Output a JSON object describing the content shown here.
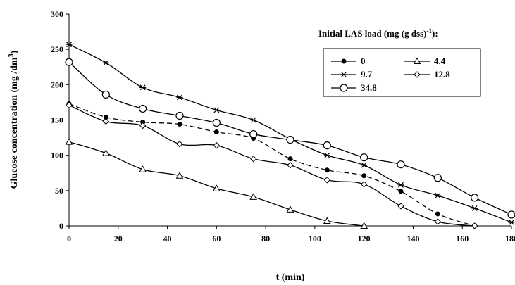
{
  "chart_data": {
    "type": "line",
    "xlabel": "t (min)",
    "ylabel": "Glucose concentration  (mg /dm",
    "ylabel_sup": "3",
    "ylabel_end": ")",
    "xlim": [
      0,
      180
    ],
    "ylim": [
      0,
      300
    ],
    "xticks": [
      0,
      20,
      40,
      60,
      80,
      100,
      120,
      140,
      160,
      180
    ],
    "yticks": [
      0,
      50,
      100,
      150,
      200,
      250,
      300
    ],
    "grid": false,
    "legend": {
      "title": "Initial LAS load (mg (g dss)",
      "title_sup": "-1",
      "title_end": "):",
      "placement": "top-right"
    },
    "series": [
      {
        "name": "0",
        "marker": "filled-circle",
        "dashed": true,
        "x": [
          0,
          15,
          30,
          45,
          60,
          75,
          90,
          105,
          120,
          135,
          150,
          165
        ],
        "y": [
          173,
          154,
          147,
          144,
          133,
          124,
          95,
          79,
          71,
          49,
          17,
          0
        ]
      },
      {
        "name": "4.4",
        "marker": "triangle",
        "dashed": false,
        "x": [
          0,
          15,
          30,
          45,
          60,
          75,
          90,
          105,
          120
        ],
        "y": [
          119,
          103,
          80,
          71,
          53,
          41,
          23,
          7,
          0
        ]
      },
      {
        "name": "9.7",
        "marker": "star",
        "dashed": false,
        "x": [
          0,
          15,
          30,
          45,
          60,
          75,
          90,
          105,
          120,
          135,
          150,
          165,
          180
        ],
        "y": [
          257,
          231,
          196,
          182,
          164,
          150,
          123,
          100,
          86,
          58,
          43,
          25,
          5
        ]
      },
      {
        "name": "12.8",
        "marker": "diamond",
        "dashed": false,
        "x": [
          0,
          15,
          30,
          45,
          60,
          75,
          90,
          105,
          120,
          135,
          150,
          165
        ],
        "y": [
          171,
          148,
          142,
          116,
          114,
          95,
          86,
          65,
          59,
          28,
          6,
          0
        ]
      },
      {
        "name": "34.8",
        "marker": "open-circle",
        "dashed": false,
        "x": [
          0,
          15,
          30,
          45,
          60,
          75,
          90,
          105,
          120,
          135,
          150,
          165,
          180
        ],
        "y": [
          232,
          186,
          166,
          156,
          146,
          130,
          122,
          114,
          97,
          87,
          68,
          40,
          16
        ]
      }
    ]
  }
}
